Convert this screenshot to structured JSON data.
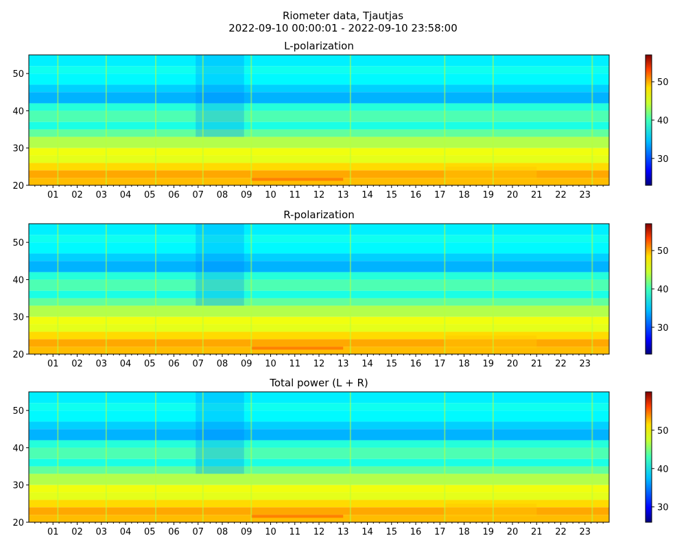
{
  "figure": {
    "title": "Riometer data, Tjautjas",
    "subtitle": "2022-09-10 00:00:01 - 2022-09-10 23:58:00"
  },
  "chart_data": [
    {
      "type": "heatmap",
      "title": "L-polarization",
      "xlabel": "",
      "ylabel": "",
      "x_unit": "hour of day",
      "xlim": [
        0,
        24
      ],
      "ylim": [
        20,
        55
      ],
      "x_tick_labels": [
        "01",
        "02",
        "03",
        "04",
        "05",
        "06",
        "07",
        "08",
        "09",
        "10",
        "11",
        "12",
        "13",
        "14",
        "15",
        "16",
        "17",
        "18",
        "19",
        "20",
        "21",
        "22",
        "23"
      ],
      "y_ticks": [
        20,
        30,
        40,
        50
      ],
      "colorbar": {
        "min": 23,
        "max": 57,
        "ticks": [
          30,
          40,
          50
        ],
        "colormap": "jet"
      },
      "grid": false
    },
    {
      "type": "heatmap",
      "title": "R-polarization",
      "xlabel": "",
      "ylabel": "",
      "x_unit": "hour of day",
      "xlim": [
        0,
        24
      ],
      "ylim": [
        20,
        55
      ],
      "x_tick_labels": [
        "01",
        "02",
        "03",
        "04",
        "05",
        "06",
        "07",
        "08",
        "09",
        "10",
        "11",
        "12",
        "13",
        "14",
        "15",
        "16",
        "17",
        "18",
        "19",
        "20",
        "21",
        "22",
        "23"
      ],
      "y_ticks": [
        20,
        30,
        40,
        50
      ],
      "colorbar": {
        "min": 23,
        "max": 57,
        "ticks": [
          30,
          40,
          50
        ],
        "colormap": "jet"
      },
      "grid": false
    },
    {
      "type": "heatmap",
      "title": "Total power (L + R)",
      "xlabel": "",
      "ylabel": "",
      "x_unit": "hour of day",
      "xlim": [
        0,
        24
      ],
      "ylim": [
        20,
        55
      ],
      "x_tick_labels": [
        "01",
        "02",
        "03",
        "04",
        "05",
        "06",
        "07",
        "08",
        "09",
        "10",
        "11",
        "12",
        "13",
        "14",
        "15",
        "16",
        "17",
        "18",
        "19",
        "20",
        "21",
        "22",
        "23"
      ],
      "y_ticks": [
        20,
        30,
        40,
        50
      ],
      "colorbar": {
        "min": 26,
        "max": 60,
        "ticks": [
          30,
          40,
          50
        ],
        "colormap": "jet"
      },
      "grid": false
    }
  ]
}
